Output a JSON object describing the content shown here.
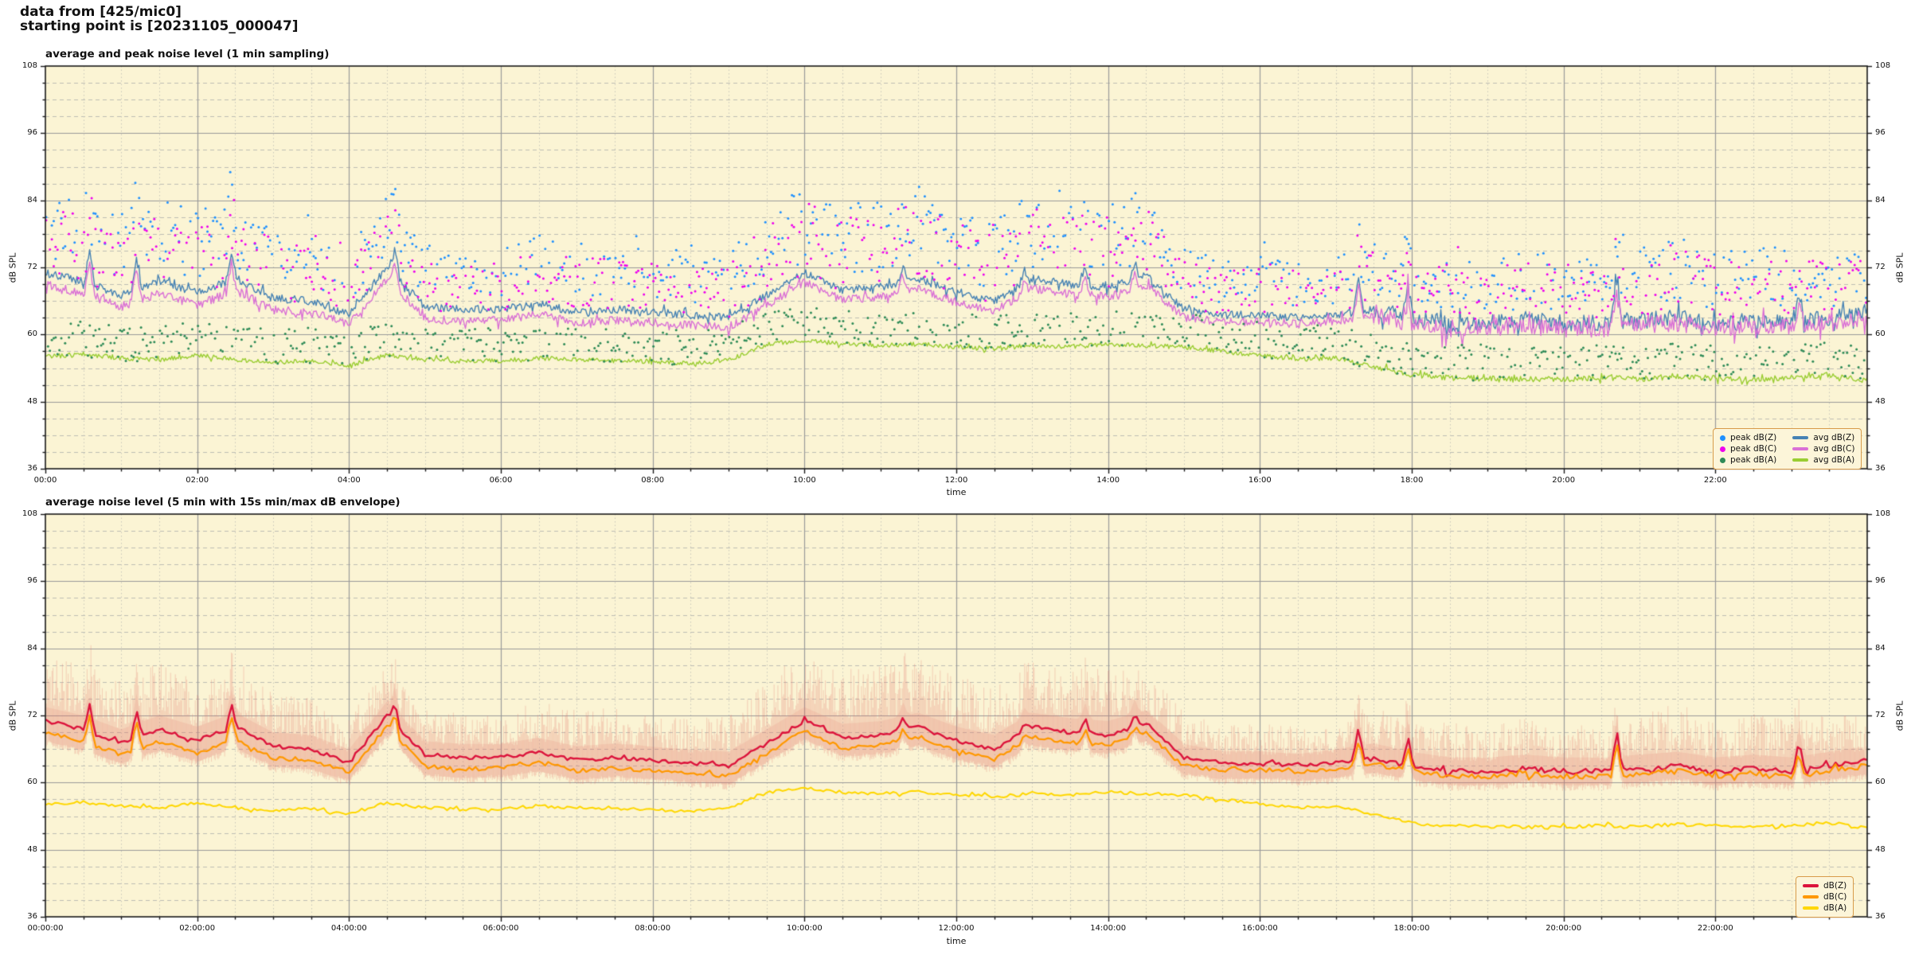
{
  "header": {
    "line1": "data from [425/mic0]",
    "line2": "starting point is [20231105_000047]"
  },
  "colors": {
    "plot_bg": "#FBF4D4",
    "grid_major": "#9A9A9A",
    "grid_minor_h": "#BDBDB3",
    "grid_minor_v": "#C8C8BC",
    "spine": "#1A1A1A",
    "envelope": "#E2766B",
    "legend_border": "#D89B4A"
  },
  "chart_data": [
    {
      "type": "line+scatter",
      "title": "average and peak noise level (1 min sampling)",
      "xlabel": "time",
      "ylabel_left": "dB SPL",
      "ylabel_right": "dB SPL",
      "xlim_hours": [
        0,
        24
      ],
      "ylim": [
        36,
        108
      ],
      "y_ticks": [
        108,
        96,
        84,
        72,
        60,
        48,
        36
      ],
      "y_minor_step_db": 3,
      "x_major_ticks_h": [
        0,
        2,
        4,
        6,
        8,
        10,
        12,
        14,
        16,
        18,
        20,
        22
      ],
      "x_tick_labels": [
        "00:00",
        "02:00",
        "04:00",
        "06:00",
        "08:00",
        "10:00",
        "12:00",
        "14:00",
        "16:00",
        "18:00",
        "20:00",
        "22:00"
      ],
      "x_minor_step_h": 0.5,
      "x_step_hours": 0.5,
      "grid": true,
      "legend_position": "lower right",
      "series": [
        {
          "name": "avg dB(Z)",
          "kind": "line",
          "color": "#4682B4",
          "width": 1.4,
          "values": [
            71,
            69.5,
            67,
            69.5,
            67.5,
            70,
            66.5,
            66,
            63.5,
            72,
            65,
            64.5,
            64.5,
            65.5,
            64,
            64.5,
            64,
            63.5,
            63,
            67,
            71,
            68,
            68.5,
            70,
            67.5,
            66,
            70,
            69,
            68.5,
            70.5,
            64.5,
            63.5,
            63.5,
            63,
            63.5,
            64.5,
            63,
            62,
            62,
            62.5,
            62,
            62,
            62.5,
            63,
            62,
            62.5,
            62,
            63,
            64
          ]
        },
        {
          "name": "avg dB(C)",
          "kind": "line",
          "color": "#DA70D6",
          "width": 1.4,
          "values": [
            69,
            67.3,
            65,
            67.3,
            65.3,
            67.8,
            64.4,
            63.9,
            61.9,
            70,
            62.9,
            62.4,
            62.6,
            63.6,
            62.1,
            62.6,
            62.1,
            61.7,
            61.2,
            65.2,
            69.3,
            66.2,
            66.7,
            68.2,
            65.7,
            64.2,
            68.2,
            67.2,
            66.8,
            68.9,
            63,
            62.2,
            62.3,
            61.9,
            62.4,
            63.4,
            62,
            61.1,
            61.1,
            61.6,
            61.1,
            61.1,
            61.6,
            62.1,
            61.1,
            61.6,
            61.1,
            62.1,
            63
          ]
        },
        {
          "name": "avg dB(A)",
          "kind": "line",
          "color": "#9ACD32",
          "width": 1.4,
          "values": [
            56,
            56.5,
            55.8,
            55.5,
            56.3,
            55.5,
            55,
            55.3,
            54.5,
            56.3,
            55.5,
            55.2,
            55.3,
            55.8,
            55.5,
            55.3,
            55.2,
            54.8,
            55.5,
            58.2,
            59,
            58.3,
            58,
            58.3,
            57.8,
            57.5,
            58,
            57.8,
            58.3,
            58,
            57.8,
            57,
            56.2,
            55.6,
            55.8,
            54.2,
            52.8,
            52.3,
            52.2,
            52,
            52,
            52.3,
            52,
            52.6,
            52.2,
            52,
            52.3,
            52.8,
            51.8
          ]
        },
        {
          "name": "peak dB(Z)",
          "kind": "scatter",
          "color": "#1E90FF",
          "base_series": 0,
          "min_offset_db": 2,
          "spread": "envelope",
          "extra_spread_db": 1.5,
          "density": 0.75
        },
        {
          "name": "peak dB(C)",
          "kind": "scatter",
          "color": "#EE00EE",
          "base_series": 1,
          "min_offset_db": 1.5,
          "spread": "envelope",
          "extra_spread_db": 1.0,
          "density": 0.75
        },
        {
          "name": "peak dB(A)",
          "kind": "scatter",
          "color": "#2E8B57",
          "base_series": 2,
          "min_offset_db": -0.5,
          "spread_db": 6.5,
          "density": 0.8
        }
      ],
      "spikes": [
        {
          "t": 0.58,
          "db": 75
        },
        {
          "t": 1.2,
          "db": 74
        },
        {
          "t": 2.45,
          "db": 74.8
        },
        {
          "t": 4.6,
          "db": 75.2
        },
        {
          "t": 11.3,
          "db": 72.5
        },
        {
          "t": 12.9,
          "db": 71.5
        },
        {
          "t": 13.7,
          "db": 72.3
        },
        {
          "t": 14.35,
          "db": 73
        },
        {
          "t": 17.3,
          "db": 70.5
        },
        {
          "t": 17.95,
          "db": 69.5
        },
        {
          "t": 20.7,
          "db": 70
        },
        {
          "t": 23.1,
          "db": 68
        }
      ],
      "jitter": {
        "normal": [
          0.7,
          0.75,
          0.4
        ],
        "late_after_h": 17.5,
        "late": [
          1.5,
          1.6,
          0.5
        ]
      },
      "legend": {
        "columns": 2,
        "entries": [
          {
            "label": "peak dB(Z)",
            "marker": "dot",
            "color": "#1E90FF"
          },
          {
            "label": "avg dB(Z)",
            "marker": "line",
            "color": "#4682B4"
          },
          {
            "label": "peak dB(C)",
            "marker": "dot",
            "color": "#EE00EE"
          },
          {
            "label": "avg dB(C)",
            "marker": "line",
            "color": "#DA70D6"
          },
          {
            "label": "peak dB(A)",
            "marker": "dot",
            "color": "#2E8B57"
          },
          {
            "label": "avg dB(A)",
            "marker": "line",
            "color": "#9ACD32"
          }
        ]
      }
    },
    {
      "type": "line+envelope",
      "title": "average noise level (5 min with 15s min/max dB envelope)",
      "xlabel": "time",
      "ylabel_left": "dB SPL",
      "ylabel_right": "dB SPL",
      "xlim_hours": [
        0,
        24
      ],
      "ylim": [
        36,
        108
      ],
      "y_ticks": [
        108,
        96,
        84,
        72,
        60,
        48,
        36
      ],
      "y_minor_step_db": 3,
      "x_major_ticks_h": [
        0,
        2,
        4,
        6,
        8,
        10,
        12,
        14,
        16,
        18,
        20,
        22
      ],
      "x_tick_labels": [
        "00:00:00",
        "02:00:00",
        "04:00:00",
        "06:00:00",
        "08:00:00",
        "10:00:00",
        "12:00:00",
        "14:00:00",
        "16:00:00",
        "18:00:00",
        "20:00:00",
        "22:00:00"
      ],
      "x_minor_step_h": 0.5,
      "x_step_hours": 0.5,
      "grid": true,
      "legend_position": "lower right",
      "series": [
        {
          "name": "dB(Z)",
          "kind": "line",
          "color": "#DC143C",
          "width": 2.4,
          "values": [
            71,
            69.5,
            67,
            69.5,
            67.5,
            70,
            66.5,
            66,
            63.5,
            72,
            65,
            64.5,
            64.5,
            65.5,
            64,
            64.5,
            64,
            63.5,
            63,
            67,
            71,
            68,
            68.5,
            70,
            67.5,
            66,
            70,
            69,
            68.5,
            70.5,
            64.5,
            63.5,
            63.5,
            63,
            63.5,
            64.5,
            63,
            62,
            62,
            62.5,
            62,
            62,
            62.5,
            63,
            62,
            62.5,
            62,
            63,
            64
          ]
        },
        {
          "name": "dB(C)",
          "kind": "line",
          "color": "#FF9800",
          "width": 2.2,
          "values": [
            69,
            67.3,
            65,
            67.3,
            65.3,
            67.8,
            64.4,
            63.9,
            61.9,
            70,
            62.9,
            62.4,
            62.6,
            63.6,
            62.1,
            62.6,
            62.1,
            61.7,
            61.2,
            65.2,
            69.3,
            66.2,
            66.7,
            68.2,
            65.7,
            64.2,
            68.2,
            67.2,
            66.8,
            68.9,
            63,
            62.2,
            62.3,
            61.9,
            62.4,
            63.4,
            62,
            61.1,
            61.1,
            61.6,
            61.1,
            61.1,
            61.6,
            62.1,
            61.1,
            61.6,
            61.1,
            62.1,
            63
          ]
        },
        {
          "name": "dB(A)",
          "kind": "line",
          "color": "#FFD700",
          "width": 2.0,
          "values": [
            56,
            56.5,
            55.8,
            55.5,
            56.3,
            55.5,
            55,
            55.3,
            54.5,
            56.3,
            55.5,
            55.2,
            55.3,
            55.8,
            55.5,
            55.3,
            55.2,
            54.8,
            55.5,
            58.2,
            59,
            58.3,
            58,
            58.3,
            57.8,
            57.5,
            58,
            57.8,
            58.3,
            58,
            57.8,
            57,
            56.2,
            55.6,
            55.8,
            54.2,
            52.8,
            52.3,
            52.2,
            52,
            52,
            52.3,
            52,
            52.6,
            52.2,
            52,
            52.3,
            52.8,
            51.8
          ]
        }
      ],
      "envelope": {
        "applies_to": [
          "dB(Z)",
          "dB(C)"
        ],
        "max_offset_above_z_db": [
          11,
          12,
          11,
          12,
          11,
          12,
          10,
          9,
          8,
          10,
          8,
          8,
          8,
          9,
          9,
          9,
          8,
          8,
          9,
          12,
          12,
          12,
          13,
          13,
          12,
          11,
          12,
          11,
          12,
          10,
          8,
          7,
          7,
          7,
          8,
          9,
          8,
          9,
          8,
          9,
          9,
          8,
          9,
          12,
          9,
          10,
          10,
          9,
          8
        ],
        "min_below_c_db": 1.5,
        "color": "#E2766B",
        "stroke_alpha": 0.28,
        "band_alpha": 0.15
      },
      "spikes": [
        {
          "t": 0.58,
          "db": 74.4
        },
        {
          "t": 1.2,
          "db": 73.4
        },
        {
          "t": 2.45,
          "db": 74.2
        },
        {
          "t": 4.6,
          "db": 74.6
        },
        {
          "t": 11.3,
          "db": 71.9
        },
        {
          "t": 12.9,
          "db": 70.9
        },
        {
          "t": 13.7,
          "db": 71.7
        },
        {
          "t": 14.35,
          "db": 72.4
        },
        {
          "t": 17.3,
          "db": 69.9
        },
        {
          "t": 17.95,
          "db": 68.9
        },
        {
          "t": 20.7,
          "db": 69.4
        },
        {
          "t": 23.1,
          "db": 67.4
        }
      ],
      "jitter": {
        "normal": [
          0.35,
          0.35,
          0.28
        ],
        "late_after_h": 17.5,
        "late": [
          0.5,
          0.5,
          0.32
        ]
      },
      "legend": {
        "columns": 1,
        "entries": [
          {
            "label": "dB(Z)",
            "marker": "line",
            "color": "#DC143C"
          },
          {
            "label": "dB(C)",
            "marker": "line",
            "color": "#FF9800"
          },
          {
            "label": "dB(A)",
            "marker": "line",
            "color": "#FFD700"
          }
        ]
      }
    }
  ],
  "render_seed": 20231105
}
